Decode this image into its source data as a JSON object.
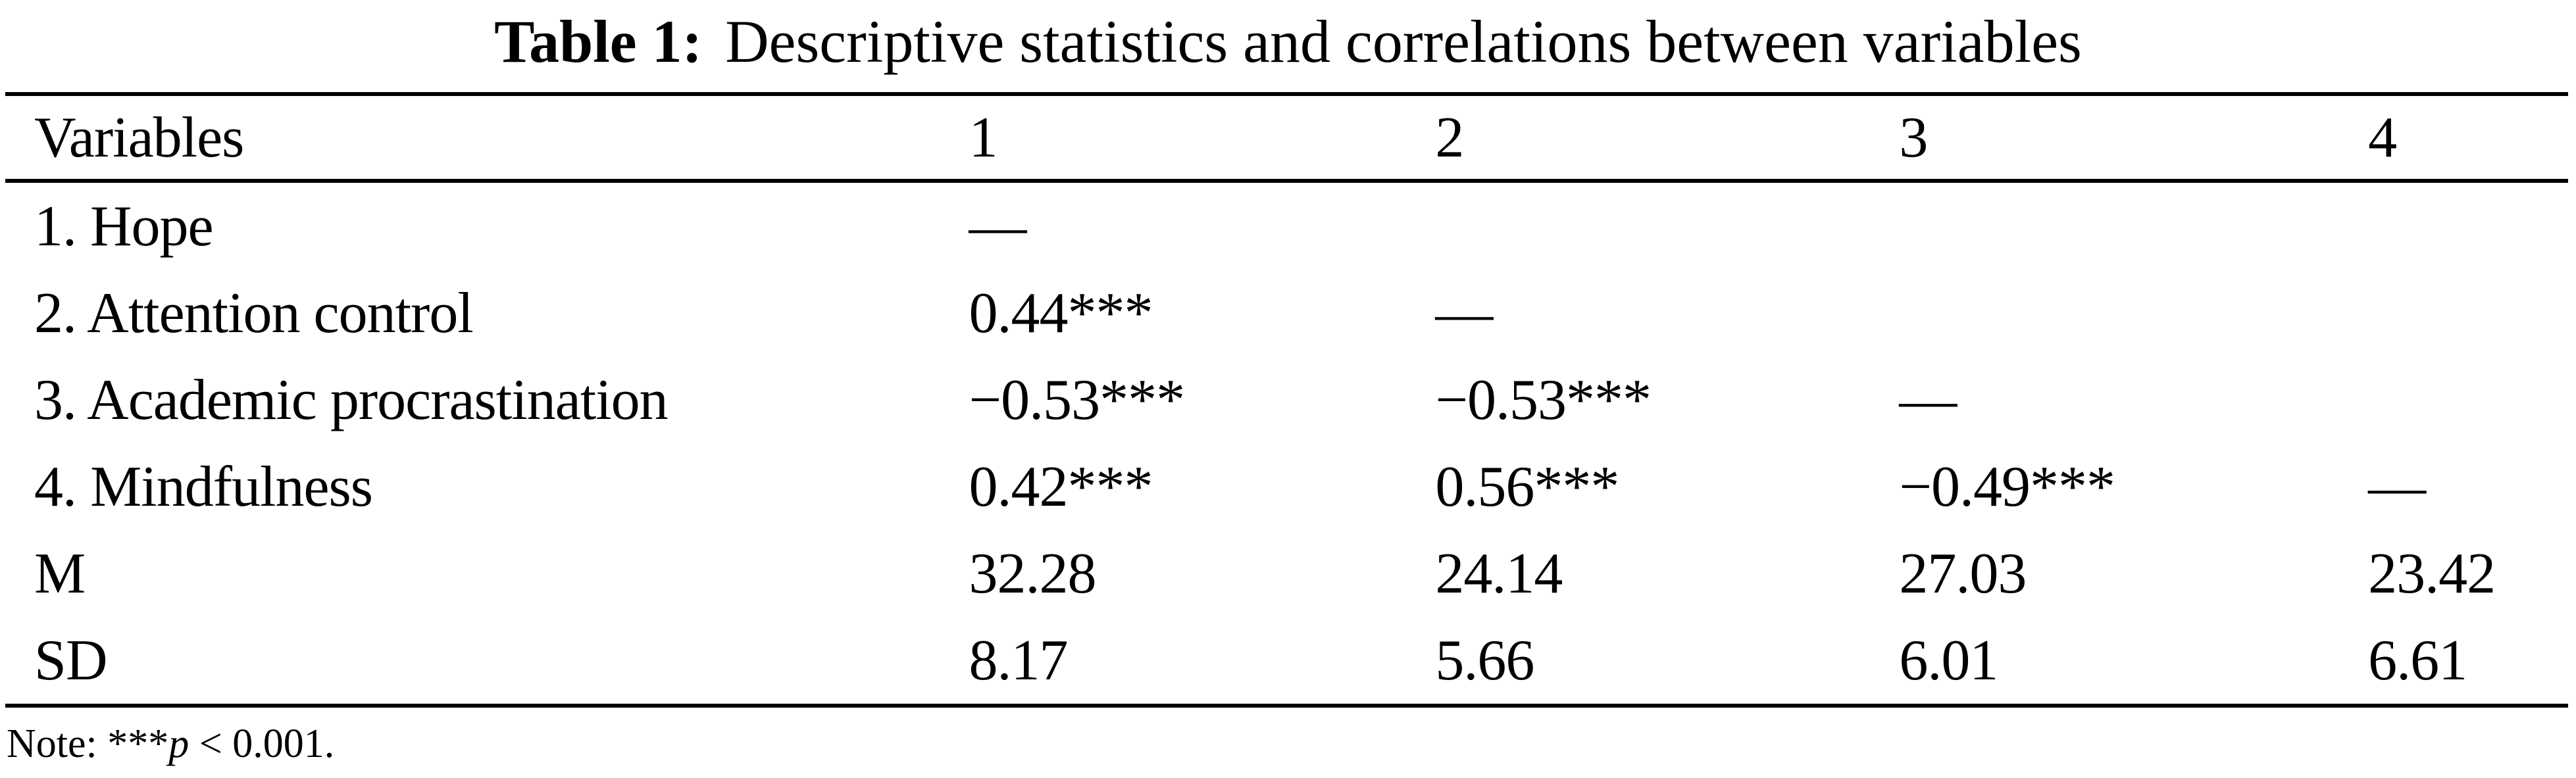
{
  "caption": {
    "label": "Table 1:",
    "text": "Descriptive statistics and correlations between variables"
  },
  "colors": {
    "text": "#000000",
    "background": "#ffffff"
  },
  "chart_data": {
    "type": "table",
    "title": "Table 1: Descriptive statistics and correlations between variables",
    "columns": [
      "Variables",
      "1",
      "2",
      "3",
      "4"
    ],
    "rows": [
      {
        "cells": [
          "1. Hope",
          "—",
          "",
          "",
          ""
        ]
      },
      {
        "cells": [
          "2. Attention control",
          "0.44***",
          "—",
          "",
          ""
        ]
      },
      {
        "cells": [
          "3. Academic procrastination",
          "−0.53***",
          "−0.53***",
          "—",
          ""
        ]
      },
      {
        "cells": [
          "4. Mindfulness",
          "0.42***",
          "0.56***",
          "−0.49***",
          "—"
        ]
      },
      {
        "cells": [
          "M",
          "32.28",
          "24.14",
          "27.03",
          "23.42"
        ]
      },
      {
        "cells": [
          "SD",
          "8.17",
          "5.66",
          "6.01",
          "6.61"
        ]
      }
    ]
  },
  "note": {
    "before": "Note: ***",
    "p": "p",
    "after": " < 0.001."
  }
}
